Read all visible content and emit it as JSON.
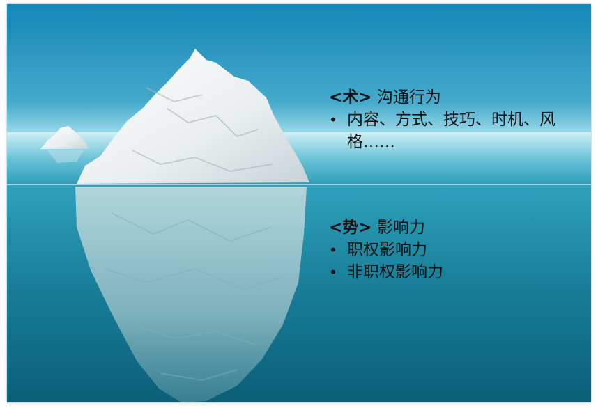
{
  "upper_section": {
    "bracket_open": "<",
    "term": "术",
    "bracket_close": ">",
    "title": "沟通行为",
    "bullets": [
      {
        "text": "内容、方式、技巧、时机、风格……"
      }
    ]
  },
  "lower_section": {
    "bracket_open": "<",
    "term": "势",
    "bracket_close": ">",
    "title": "影响力",
    "bullets": [
      {
        "text": "职权影响力"
      },
      {
        "text": "非职权影响力"
      }
    ]
  },
  "bullet_symbol": "•",
  "colors": {
    "sky_top": "#1587b8",
    "sky_horizon": "#9fdcec",
    "water_surface": "#2fa2bd",
    "water_deep": "#0b5f78",
    "ice": "#f1f5f6",
    "text": "#111111"
  }
}
